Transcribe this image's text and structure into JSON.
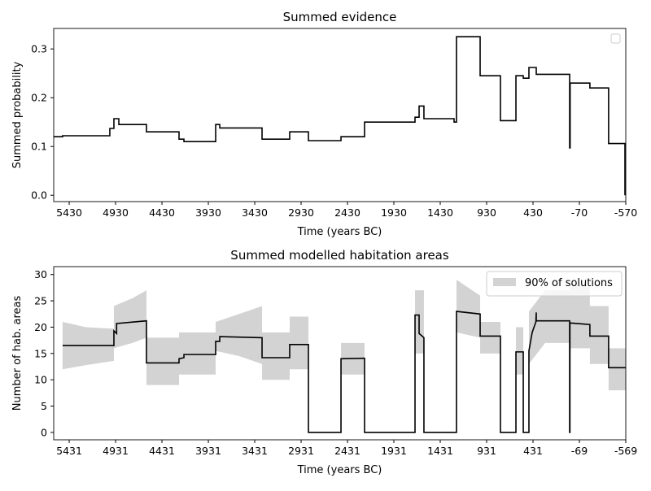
{
  "chart_data": [
    {
      "type": "line",
      "title": "Summed evidence",
      "xlabel": "Time (years BC)",
      "ylabel": "Summed probability",
      "xlim": [
        5597,
        -570
      ],
      "xticks": [
        5430,
        4930,
        4430,
        3930,
        3430,
        2930,
        2430,
        1930,
        1430,
        930,
        430,
        -70,
        -570
      ],
      "ylim": [
        -0.013,
        0.342
      ],
      "yticks": [
        {
          "value": 0,
          "label": "0.0"
        },
        0.1,
        0.2,
        0.3
      ],
      "legend": "upper right",
      "series": [
        {
          "color": "#000000",
          "x": [
            5597,
            5501,
            5501,
            4992,
            4992,
            4948,
            4948,
            4895,
            4895,
            4597,
            4597,
            4246,
            4246,
            4193,
            4193,
            3851,
            3851,
            3807,
            3807,
            3351,
            3351,
            3053,
            3053,
            2851,
            2851,
            2500,
            2500,
            2246,
            2246,
            1702,
            1702,
            1658,
            1658,
            1606,
            1606,
            1281,
            1281,
            1255,
            1255,
            1000,
            1000,
            781,
            781,
            614,
            614,
            535,
            535,
            474,
            474,
            395,
            395,
            35,
            35,
            30,
            30,
            -183,
            -183,
            -385,
            -385,
            -561,
            -561
          ],
          "values": [
            0.12,
            0.12,
            0.122,
            0.122,
            0.137,
            0.137,
            0.157,
            0.157,
            0.145,
            0.145,
            0.13,
            0.13,
            0.115,
            0.115,
            0.11,
            0.11,
            0.145,
            0.145,
            0.138,
            0.138,
            0.115,
            0.115,
            0.13,
            0.13,
            0.112,
            0.112,
            0.12,
            0.12,
            0.15,
            0.15,
            0.16,
            0.16,
            0.183,
            0.183,
            0.157,
            0.157,
            0.15,
            0.15,
            0.325,
            0.325,
            0.245,
            0.245,
            0.153,
            0.153,
            0.245,
            0.245,
            0.24,
            0.24,
            0.262,
            0.262,
            0.248,
            0.248,
            0.097,
            0.097,
            0.23,
            0.23,
            0.22,
            0.22,
            0.106,
            0.106,
            0
          ]
        }
      ]
    },
    {
      "type": "line",
      "title": "Summed modelled habitation areas",
      "xlabel": "Time (years BC)",
      "ylabel": "Number of hab. areas",
      "xlim": [
        5598,
        -569
      ],
      "xticks": [
        5431,
        4931,
        4431,
        3931,
        3431,
        2931,
        2431,
        1931,
        1431,
        931,
        431,
        -69,
        -569
      ],
      "ylim": [
        -1.4,
        31.5
      ],
      "yticks": [
        0,
        5,
        10,
        15,
        20,
        25,
        30
      ],
      "legend": "upper right",
      "series": [
        {
          "name": "90% of solutions",
          "color": "#d3d3d3",
          "kind": "band",
          "x": [
            5502,
            5250,
            4949,
            4949,
            4750,
            4598,
            4598,
            4247,
            4247,
            3852,
            3852,
            3600,
            3352,
            3352,
            3054,
            3054,
            2852,
            2852,
            2501,
            2501,
            2247,
            2247,
            1703,
            1703,
            1607,
            1607,
            1256,
            1256,
            1001,
            1001,
            782,
            782,
            615,
            615,
            536,
            536,
            475,
            475,
            300,
            36,
            36,
            -182,
            -182,
            -384,
            -384,
            -569
          ],
          "lower": [
            12,
            12.8,
            13.6,
            16,
            17,
            18,
            9,
            9,
            11,
            11,
            15.5,
            14.5,
            13,
            10,
            10,
            12,
            12,
            0,
            0,
            11,
            11,
            0,
            0,
            15,
            15,
            0,
            0,
            19,
            18,
            15,
            15,
            0,
            0,
            11,
            11,
            0,
            0,
            13,
            17,
            17,
            16,
            16,
            13,
            13,
            8,
            8
          ],
          "upper": [
            21,
            20,
            19.7,
            24,
            25.5,
            27,
            18,
            18,
            19,
            19,
            21,
            22.5,
            24,
            19,
            19,
            22,
            22,
            0,
            0,
            17,
            17,
            0,
            0,
            27,
            27,
            0,
            0,
            29,
            26,
            21,
            21,
            0,
            0,
            20,
            20,
            0,
            0,
            23,
            27,
            27,
            28,
            28,
            24,
            24,
            16,
            16
          ]
        },
        {
          "color": "#000000",
          "kind": "line",
          "x": [
            5502,
            4949,
            4949,
            4920,
            4920,
            4598,
            4598,
            4247,
            4247,
            4194,
            4194,
            3852,
            3852,
            3808,
            3808,
            3352,
            3352,
            3054,
            3054,
            2852,
            2852,
            2501,
            2501,
            2247,
            2247,
            1703,
            1703,
            1659,
            1659,
            1607,
            1607,
            1256,
            1256,
            1001,
            1001,
            782,
            782,
            615,
            615,
            536,
            536,
            475,
            475,
            440,
            400,
            396,
            396,
            36,
            36,
            33,
            33,
            -182,
            -182,
            -384,
            -384,
            -569
          ],
          "values": [
            16.5,
            16.5,
            19.3,
            18.8,
            20.7,
            21.2,
            13.2,
            13.2,
            14,
            14.2,
            14.8,
            14.8,
            17.3,
            17.3,
            18.2,
            18,
            14.2,
            14.2,
            16.7,
            16.7,
            0,
            0,
            14,
            14.1,
            0,
            0,
            22.3,
            22.3,
            18.8,
            18,
            0,
            0,
            23,
            22.5,
            18.3,
            18.3,
            0,
            0,
            15.3,
            15.3,
            0,
            0,
            15.5,
            19,
            21,
            22.8,
            21.2,
            21.2,
            0,
            0,
            20.8,
            20.5,
            18.3,
            18.3,
            12.3,
            12.3
          ]
        }
      ]
    }
  ]
}
